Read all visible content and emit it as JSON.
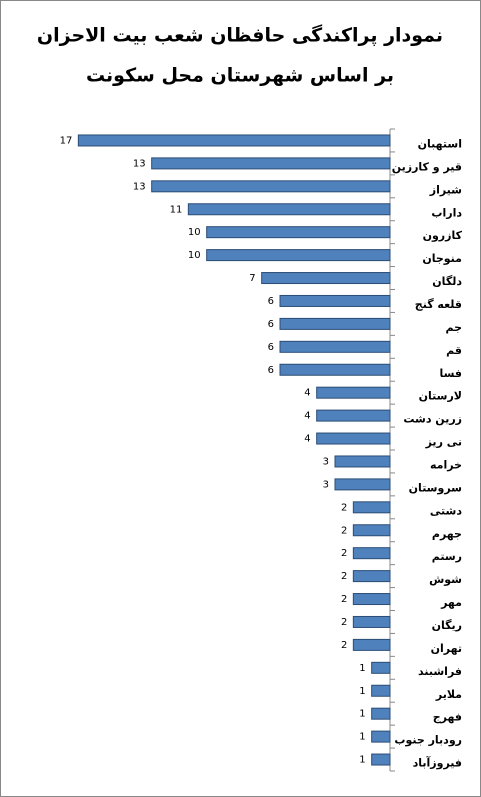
{
  "chart_data": {
    "type": "hbar",
    "title": "نمودار پراکندگی حافظان شعب بیت الاحزان",
    "subtitle": "بر اساس شهرستان محل سکونت",
    "categories": [
      "استهبان",
      "قیر و کارزین",
      "شیراز",
      "داراب",
      "کازرون",
      "منوجان",
      "دلگان",
      "قلعه گنج",
      "جم",
      "قم",
      "فسا",
      "لارستان",
      "زرین دشت",
      "نی ریز",
      "خرامه",
      "سروستان",
      "دشتی",
      "جهرم",
      "رستم",
      "شوش",
      "مهر",
      "ریگان",
      "تهران",
      "فراشبند",
      "ملایر",
      "فهرج",
      "رودبار جنوب",
      "فیروزآباد"
    ],
    "values": [
      17,
      13,
      13,
      11,
      10,
      10,
      7,
      6,
      6,
      6,
      6,
      4,
      4,
      4,
      3,
      3,
      2,
      2,
      2,
      2,
      2,
      2,
      2,
      1,
      1,
      1,
      1,
      1
    ],
    "color": "#4f81bd",
    "xlim": [
      0,
      18
    ]
  }
}
